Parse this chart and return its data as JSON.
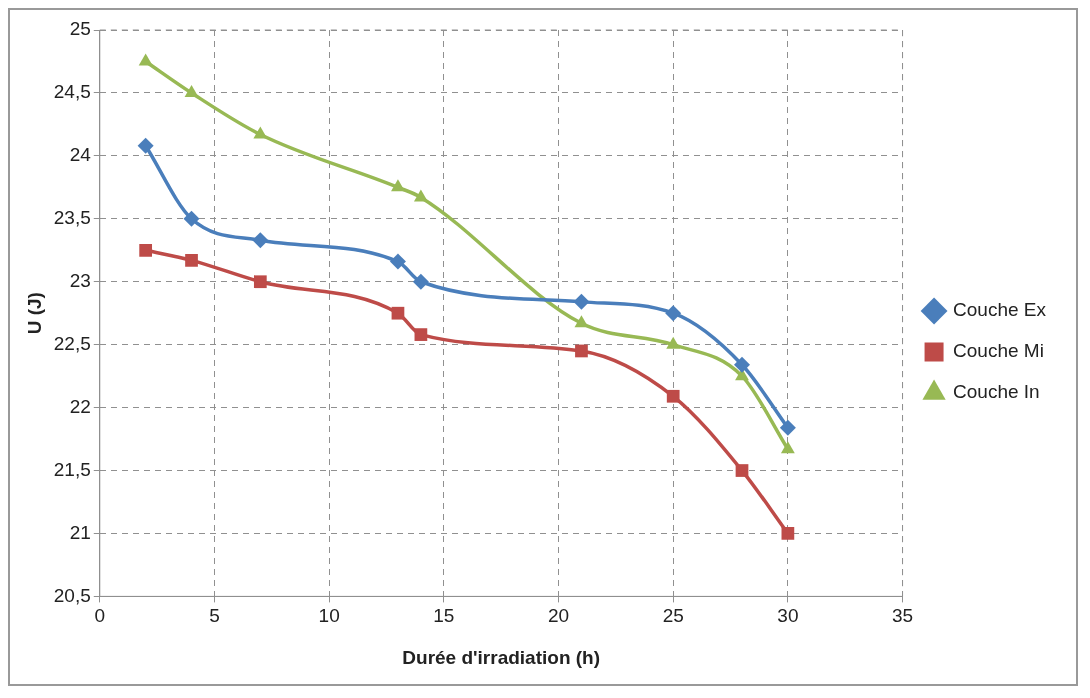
{
  "chart_data": {
    "type": "line",
    "xlabel": "Durée d'irradiation (h)",
    "ylabel": "U (J)",
    "x": [
      2,
      4,
      7,
      13,
      14,
      21,
      25,
      28,
      30
    ],
    "series": [
      {
        "name": "Couche Ex",
        "color": "#4a7ebb",
        "marker": "diamond",
        "values": [
          24.08,
          23.5,
          23.33,
          23.16,
          23.0,
          22.84,
          22.75,
          22.34,
          21.84
        ]
      },
      {
        "name": "Couche Mi",
        "color": "#be4b48",
        "marker": "square",
        "values": [
          23.25,
          23.17,
          23.0,
          22.75,
          22.58,
          22.45,
          22.09,
          21.5,
          21.0
        ]
      },
      {
        "name": "Couche In",
        "color": "#98b954",
        "marker": "triangle",
        "values": [
          24.75,
          24.5,
          24.17,
          23.75,
          23.67,
          22.67,
          22.5,
          22.25,
          21.67
        ]
      }
    ],
    "xlim": [
      0,
      35
    ],
    "xticks": [
      0,
      5,
      10,
      15,
      20,
      25,
      30,
      35
    ],
    "ylim": [
      20.5,
      25
    ],
    "yticks": [
      {
        "value": 20.5,
        "label": "20,5"
      },
      21,
      {
        "value": 21.5,
        "label": "21,5"
      },
      22,
      {
        "value": 22.5,
        "label": "22,5"
      },
      23,
      {
        "value": 23.5,
        "label": "23,5"
      },
      24,
      {
        "value": 24.5,
        "label": "24,5"
      },
      25
    ],
    "grid": true,
    "legend": "right",
    "line_style": "solid"
  }
}
